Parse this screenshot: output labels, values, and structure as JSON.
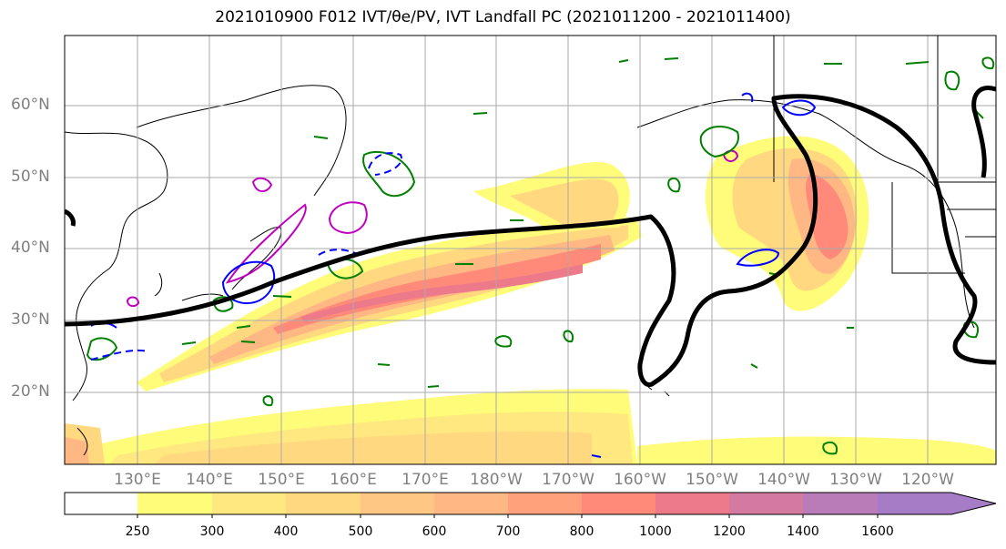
{
  "title": "2021010900 F012 IVT/θe/PV, IVT Landfall PC (2021011200 - 2021011400)",
  "latitude_labels": [
    "60°N",
    "50°N",
    "40°N",
    "30°N",
    "20°N"
  ],
  "longitude_labels": [
    "130°E",
    "140°E",
    "150°E",
    "160°E",
    "170°E",
    "180°W",
    "170°W",
    "160°W",
    "150°W",
    "140°W",
    "130°W",
    "120°W"
  ],
  "colorbar": {
    "levels": [
      "250",
      "300",
      "400",
      "500",
      "600",
      "700",
      "800",
      "1000",
      "1200",
      "1400",
      "1600"
    ],
    "colors": [
      "#ffffff",
      "#fffc7a",
      "#ffe880",
      "#ffd880",
      "#ffc783",
      "#ffb783",
      "#ffa27c",
      "#ff8a7a",
      "#ec7a8a",
      "#d47aa0",
      "#ba7cb8",
      "#a77cc6"
    ]
  },
  "colors": {
    "green_contour": "#008000",
    "blue_contour": "#0000ff",
    "magenta_contour": "#c000c0",
    "black_pc": "#000000",
    "grid": "#aaaaaa"
  }
}
